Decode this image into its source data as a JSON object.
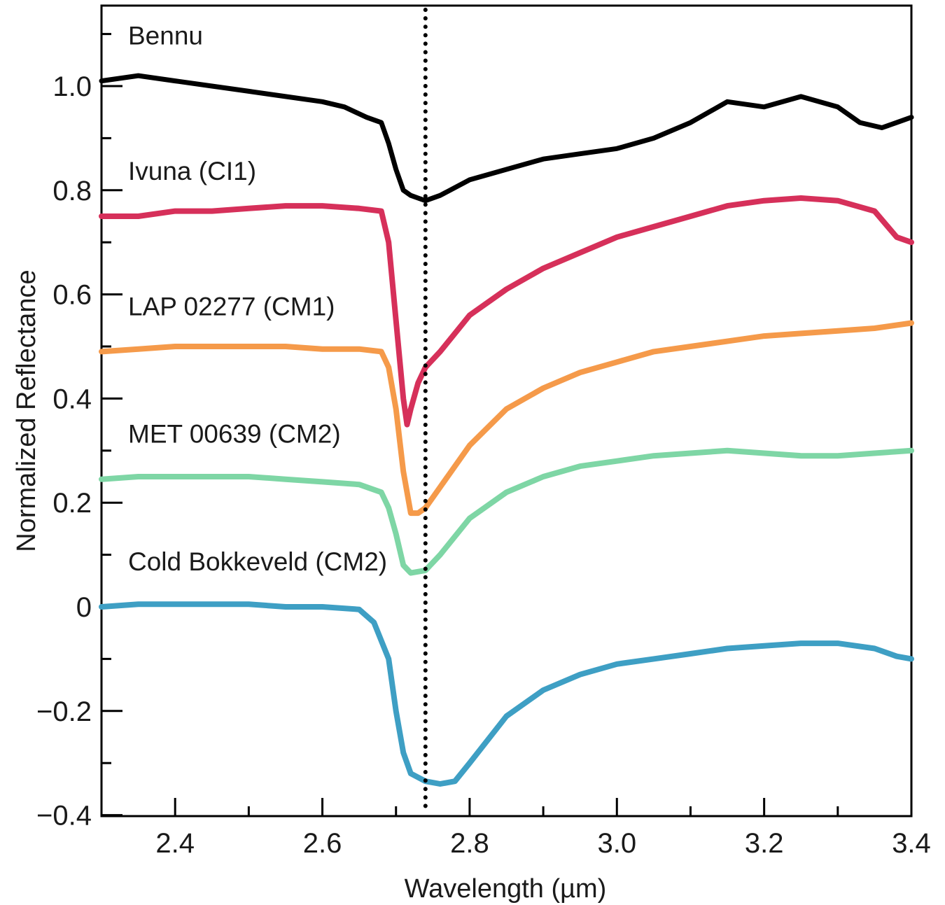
{
  "chart_data": {
    "type": "line",
    "title": "",
    "xlabel": "Wavelength (µm)",
    "ylabel": "Normalized Reflectance",
    "xlim": [
      2.3,
      3.4
    ],
    "ylim": [
      -0.4,
      1.15
    ],
    "x_ticks": [
      2.4,
      2.6,
      2.8,
      3.0,
      3.2,
      3.4
    ],
    "x_tick_labels": [
      "2.4",
      "2.6",
      "2.8",
      "3.0",
      "3.2",
      "3.4"
    ],
    "x_minor_ticks": [
      2.3,
      2.5,
      2.7,
      2.9,
      3.1,
      3.3
    ],
    "y_ticks": [
      -0.4,
      -0.2,
      0,
      0.2,
      0.4,
      0.6,
      0.8,
      1.0
    ],
    "y_tick_labels": [
      "−0.4",
      "−0.2",
      "0",
      "0.2",
      "0.4",
      "0.6",
      "0.8",
      "1.0"
    ],
    "y_minor_ticks": [
      -0.3,
      -0.1,
      0.1,
      0.3,
      0.5,
      0.7,
      0.9,
      1.1
    ],
    "vline": {
      "x": 2.74,
      "style": "dotted",
      "color": "#000000"
    },
    "grid": false,
    "legend": "inline labels above each curve",
    "series": [
      {
        "name": "Bennu",
        "color": "#000000",
        "x": [
          2.3,
          2.35,
          2.4,
          2.45,
          2.5,
          2.55,
          2.6,
          2.63,
          2.66,
          2.68,
          2.69,
          2.7,
          2.71,
          2.72,
          2.73,
          2.74,
          2.76,
          2.8,
          2.85,
          2.9,
          2.95,
          3.0,
          3.05,
          3.1,
          3.15,
          3.2,
          3.25,
          3.3,
          3.33,
          3.36,
          3.38,
          3.4
        ],
        "y": [
          1.01,
          1.02,
          1.01,
          1.0,
          0.99,
          0.98,
          0.97,
          0.96,
          0.94,
          0.93,
          0.89,
          0.84,
          0.8,
          0.79,
          0.785,
          0.78,
          0.79,
          0.82,
          0.84,
          0.86,
          0.87,
          0.88,
          0.9,
          0.93,
          0.97,
          0.96,
          0.98,
          0.96,
          0.93,
          0.92,
          0.93,
          0.94
        ]
      },
      {
        "name": "Ivuna (CI1)",
        "color": "#d6305a",
        "x": [
          2.3,
          2.35,
          2.4,
          2.45,
          2.5,
          2.55,
          2.6,
          2.65,
          2.68,
          2.69,
          2.7,
          2.71,
          2.715,
          2.72,
          2.73,
          2.74,
          2.76,
          2.8,
          2.85,
          2.9,
          2.95,
          3.0,
          3.05,
          3.1,
          3.15,
          3.2,
          3.25,
          3.3,
          3.35,
          3.38,
          3.4
        ],
        "y": [
          0.75,
          0.75,
          0.76,
          0.76,
          0.765,
          0.77,
          0.77,
          0.765,
          0.76,
          0.7,
          0.55,
          0.4,
          0.35,
          0.38,
          0.43,
          0.46,
          0.49,
          0.56,
          0.61,
          0.65,
          0.68,
          0.71,
          0.73,
          0.75,
          0.77,
          0.78,
          0.785,
          0.78,
          0.76,
          0.71,
          0.7
        ]
      },
      {
        "name": "LAP 02277 (CM1)",
        "color": "#f59a4a",
        "x": [
          2.3,
          2.35,
          2.4,
          2.45,
          2.5,
          2.55,
          2.6,
          2.65,
          2.68,
          2.69,
          2.7,
          2.71,
          2.72,
          2.73,
          2.74,
          2.76,
          2.8,
          2.85,
          2.9,
          2.95,
          3.0,
          3.05,
          3.1,
          3.15,
          3.2,
          3.25,
          3.3,
          3.35,
          3.4
        ],
        "y": [
          0.49,
          0.495,
          0.5,
          0.5,
          0.5,
          0.5,
          0.495,
          0.495,
          0.49,
          0.46,
          0.38,
          0.26,
          0.18,
          0.18,
          0.19,
          0.23,
          0.31,
          0.38,
          0.42,
          0.45,
          0.47,
          0.49,
          0.5,
          0.51,
          0.52,
          0.525,
          0.53,
          0.535,
          0.545
        ]
      },
      {
        "name": "MET 00639 (CM2)",
        "color": "#7ed6a5",
        "x": [
          2.3,
          2.35,
          2.4,
          2.45,
          2.5,
          2.55,
          2.6,
          2.65,
          2.68,
          2.69,
          2.7,
          2.71,
          2.72,
          2.74,
          2.76,
          2.8,
          2.85,
          2.9,
          2.95,
          3.0,
          3.05,
          3.1,
          3.15,
          3.2,
          3.25,
          3.3,
          3.35,
          3.4
        ],
        "y": [
          0.245,
          0.25,
          0.25,
          0.25,
          0.25,
          0.245,
          0.24,
          0.235,
          0.22,
          0.19,
          0.14,
          0.08,
          0.065,
          0.07,
          0.1,
          0.17,
          0.22,
          0.25,
          0.27,
          0.28,
          0.29,
          0.295,
          0.3,
          0.295,
          0.29,
          0.29,
          0.295,
          0.3
        ]
      },
      {
        "name": "Cold Bokkeveld (CM2)",
        "color": "#3e9fc4",
        "x": [
          2.3,
          2.35,
          2.4,
          2.45,
          2.5,
          2.55,
          2.6,
          2.65,
          2.67,
          2.69,
          2.7,
          2.71,
          2.72,
          2.74,
          2.76,
          2.78,
          2.8,
          2.85,
          2.9,
          2.95,
          3.0,
          3.05,
          3.1,
          3.15,
          3.2,
          3.25,
          3.3,
          3.35,
          3.38,
          3.4
        ],
        "y": [
          0.0,
          0.005,
          0.005,
          0.005,
          0.005,
          0.0,
          0.0,
          -0.005,
          -0.03,
          -0.1,
          -0.2,
          -0.28,
          -0.32,
          -0.335,
          -0.34,
          -0.335,
          -0.3,
          -0.21,
          -0.16,
          -0.13,
          -0.11,
          -0.1,
          -0.09,
          -0.08,
          -0.075,
          -0.07,
          -0.07,
          -0.08,
          -0.095,
          -0.1
        ]
      }
    ]
  }
}
